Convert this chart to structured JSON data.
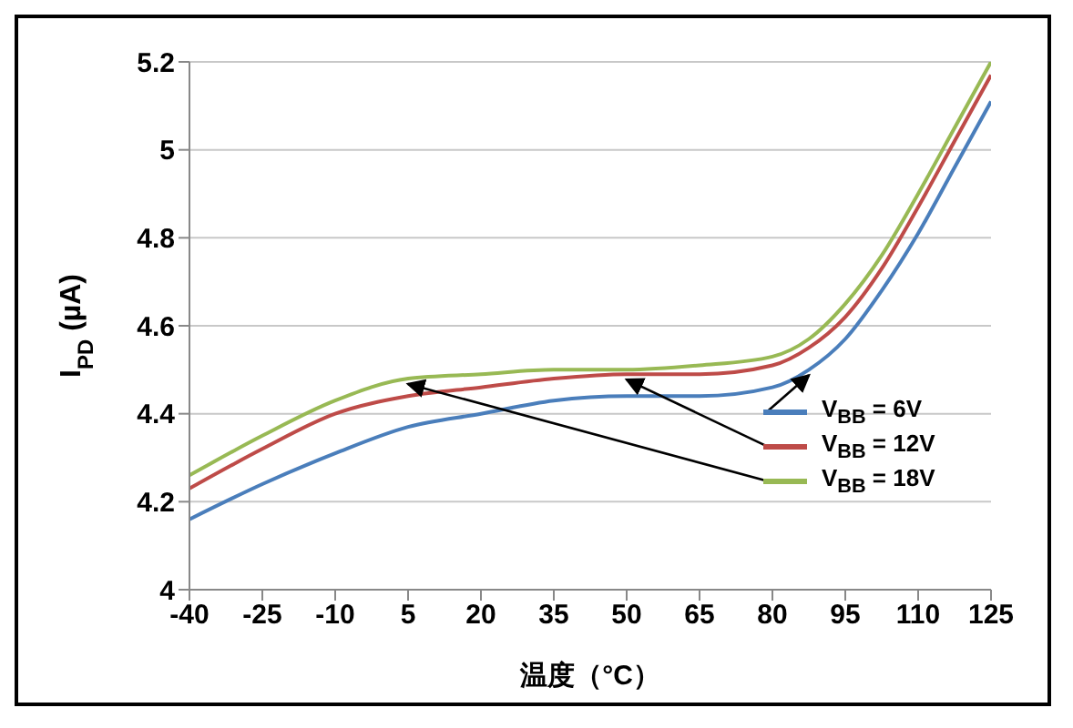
{
  "chart_data": {
    "type": "line",
    "xlabel": "温度（°C）",
    "ylabel": "I$_{PD}$ (µA)",
    "x": [
      -40,
      -25,
      -10,
      5,
      20,
      35,
      50,
      65,
      80,
      87.5,
      95,
      102.5,
      110,
      117.5,
      125
    ],
    "series": [
      {
        "name": "V$_{BB}$ = 6V",
        "color": "#4a7ebb",
        "values": [
          4.16,
          4.24,
          4.31,
          4.37,
          4.4,
          4.43,
          4.44,
          4.44,
          4.46,
          4.5,
          4.57,
          4.68,
          4.81,
          4.96,
          5.11
        ]
      },
      {
        "name": "V$_{BB}$ = 12V",
        "color": "#be4b48",
        "values": [
          4.23,
          4.32,
          4.4,
          4.44,
          4.46,
          4.48,
          4.49,
          4.49,
          4.51,
          4.55,
          4.62,
          4.73,
          4.87,
          5.02,
          5.17
        ]
      },
      {
        "name": "V$_{BB}$ = 18V",
        "color": "#98b954",
        "values": [
          4.26,
          4.35,
          4.43,
          4.48,
          4.49,
          4.5,
          4.5,
          4.51,
          4.53,
          4.57,
          4.65,
          4.76,
          4.9,
          5.05,
          5.2
        ]
      }
    ],
    "xlim": [
      -40,
      125
    ],
    "xticks": [
      -40,
      -25,
      -10,
      5,
      20,
      35,
      50,
      65,
      80,
      95,
      110,
      125
    ],
    "ylim": [
      4,
      5.2
    ],
    "yticks": [
      4,
      4.2,
      4.4,
      4.6,
      4.8,
      5,
      5.2
    ],
    "grid": "y",
    "legend": "right",
    "marker": "none",
    "line_style": "solid"
  }
}
